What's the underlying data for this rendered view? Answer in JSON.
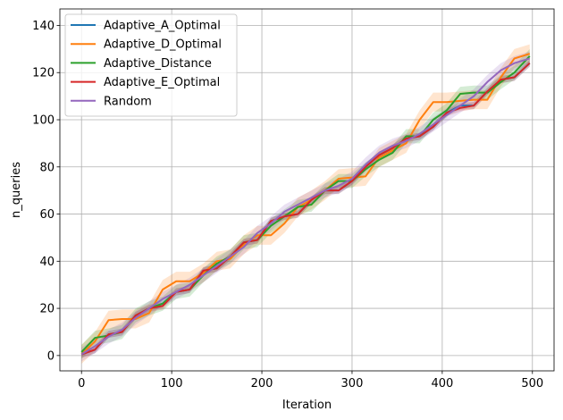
{
  "chart_data": {
    "type": "line",
    "xlabel": "Iteration",
    "ylabel": "n_queries",
    "xlim": [
      -24,
      524
    ],
    "ylim": [
      -6.5,
      147
    ],
    "xticks": [
      0,
      100,
      200,
      300,
      400,
      500
    ],
    "yticks": [
      0,
      20,
      40,
      60,
      80,
      100,
      120,
      140
    ],
    "grid": true,
    "legend_position": "top-left",
    "shaded_band": true,
    "series": [
      {
        "name": "Adaptive_A_Optimal",
        "color": "#1f77b4",
        "x": [
          0,
          15,
          30,
          45,
          60,
          75,
          90,
          105,
          120,
          135,
          150,
          165,
          180,
          195,
          210,
          225,
          240,
          255,
          270,
          285,
          300,
          315,
          330,
          345,
          360,
          375,
          390,
          405,
          420,
          435,
          450,
          465,
          480,
          497
        ],
        "y": [
          0.5,
          2.5,
          9,
          10,
          17,
          20,
          22,
          27,
          28,
          36,
          37,
          42,
          48,
          49,
          57,
          59,
          60,
          66,
          70,
          70,
          74,
          80,
          85,
          88,
          92,
          93,
          97,
          103,
          106,
          106,
          112,
          117,
          118,
          124
        ],
        "band": 1.5
      },
      {
        "name": "Adaptive_D_Optimal",
        "color": "#ff7f0e",
        "x": [
          0,
          15,
          30,
          45,
          60,
          75,
          90,
          105,
          120,
          135,
          150,
          165,
          180,
          195,
          210,
          225,
          240,
          255,
          270,
          285,
          300,
          315,
          330,
          345,
          360,
          375,
          390,
          405,
          420,
          435,
          450,
          465,
          480,
          497
        ],
        "y": [
          0.5,
          6,
          15,
          15.5,
          15.5,
          18,
          28,
          31.5,
          31.5,
          35,
          40,
          41,
          47,
          51,
          51,
          56,
          63,
          66,
          70,
          75,
          75.5,
          76,
          84,
          87,
          90,
          100,
          107.5,
          107.5,
          108,
          108.5,
          108.5,
          118,
          126,
          128
        ],
        "band": 4
      },
      {
        "name": "Adaptive_Distance",
        "color": "#2ca02c",
        "x": [
          0,
          15,
          30,
          45,
          60,
          75,
          90,
          105,
          120,
          135,
          150,
          165,
          180,
          195,
          210,
          225,
          240,
          255,
          270,
          285,
          300,
          315,
          330,
          345,
          360,
          375,
          390,
          405,
          420,
          435,
          450,
          465,
          480,
          497
        ],
        "y": [
          1.5,
          7.5,
          8.5,
          10,
          17,
          20,
          22,
          27,
          28,
          34,
          39,
          42,
          48,
          49,
          55,
          59,
          63,
          64,
          70,
          74,
          74,
          79,
          83,
          86,
          93,
          93,
          100,
          104,
          111,
          111.5,
          111.5,
          116,
          120,
          127
        ],
        "band": 3
      },
      {
        "name": "Adaptive_E_Optimal",
        "color": "#d62728",
        "x": [
          0,
          15,
          30,
          45,
          60,
          75,
          90,
          105,
          120,
          135,
          150,
          165,
          180,
          195,
          210,
          225,
          240,
          255,
          270,
          285,
          300,
          315,
          330,
          345,
          360,
          375,
          390,
          405,
          420,
          435,
          450,
          465,
          480,
          497
        ],
        "y": [
          0.5,
          2.5,
          9,
          10,
          17,
          20,
          21,
          27,
          28,
          36,
          37,
          42,
          48,
          49,
          57,
          59,
          60,
          66,
          70,
          70,
          74,
          80,
          85,
          88,
          92,
          93,
          97,
          103,
          105,
          106,
          112,
          117,
          118,
          124
        ],
        "band": 1.5
      },
      {
        "name": "Random",
        "color": "#9467bd",
        "x": [
          0,
          15,
          30,
          45,
          60,
          75,
          90,
          105,
          120,
          135,
          150,
          165,
          180,
          195,
          210,
          225,
          240,
          255,
          270,
          285,
          300,
          315,
          330,
          345,
          360,
          375,
          390,
          405,
          420,
          435,
          450,
          465,
          480,
          497
        ],
        "y": [
          0.5,
          4,
          8,
          11,
          16,
          20,
          24,
          27,
          30,
          34,
          38,
          42,
          46,
          52,
          56,
          61,
          64,
          67,
          70,
          72,
          75,
          81,
          86,
          89,
          91,
          94,
          98,
          102,
          106,
          110,
          116,
          121,
          124,
          126
        ],
        "band": 3
      }
    ]
  }
}
